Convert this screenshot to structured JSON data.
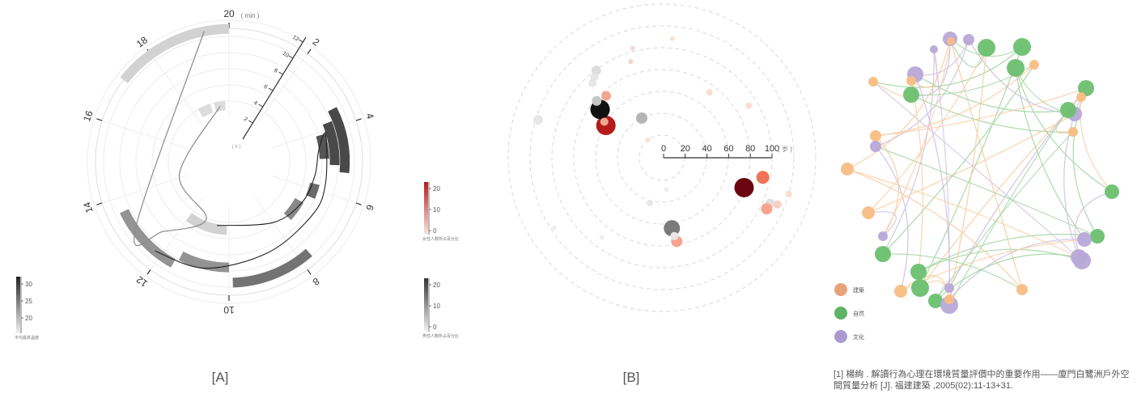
{
  "panel_labels": {
    "a": "[A]",
    "b": "[B]"
  },
  "citation": "[1] 楊絢 . 解讀行為心理在環境質量評價中的重要作用——廈門白鷺洲戶外空間質量分析 [J]. 福建建築 ,2005(02):11-13+31.",
  "chart_data": [
    {
      "type": "radial-bar",
      "panel": "A",
      "angular_axis": {
        "ticks": [
          "20",
          "2",
          "4",
          "6",
          "8",
          "10",
          "12",
          "14",
          "16",
          "18"
        ],
        "unit": "( min )"
      },
      "radial_scale_ticks": [
        "2",
        "4",
        "6",
        "8",
        "10",
        "12"
      ],
      "radial_scale_unit": "( h )",
      "colorbar": {
        "ticks": [
          "30",
          "25",
          "20"
        ],
        "label": "平均最高溫度"
      },
      "bars": [
        {
          "t0": 17.1,
          "t1": 20.0,
          "ring": 5.2,
          "temp": 18
        },
        {
          "t0": 11.6,
          "t1": 13.6,
          "ring": 4.2,
          "temp": 24
        },
        {
          "t0": 10.0,
          "t1": 11.5,
          "ring": 3.6,
          "temp": 24
        },
        {
          "t0": 7.7,
          "t1": 9.9,
          "ring": 4.5,
          "temp": 27
        },
        {
          "t0": 3.5,
          "t1": 5.3,
          "ring": 4.2,
          "temp": 31
        },
        {
          "t0": 3.8,
          "t1": 5.1,
          "ring": 3.6,
          "temp": 31
        },
        {
          "t0": 4.1,
          "t1": 4.9,
          "ring": 3.0,
          "temp": 30
        },
        {
          "t0": 5.8,
          "t1": 6.3,
          "ring": 2.6,
          "temp": 28
        },
        {
          "t0": 6.6,
          "t1": 7.4,
          "ring": 2.1,
          "temp": 25
        },
        {
          "t0": 10.1,
          "t1": 12.0,
          "ring": 1.4,
          "temp": 18
        },
        {
          "t0": 18.3,
          "t1": 19.0,
          "ring": 0.7,
          "temp": 17
        },
        {
          "t0": 19.2,
          "t1": 19.8,
          "ring": 0.7,
          "temp": 17
        }
      ],
      "curve_grey": [
        [
          19.4,
          5.2
        ],
        [
          13.0,
          4.2
        ],
        [
          12.4,
          3.0
        ],
        [
          11.2,
          1.0
        ],
        [
          14.2,
          0.4
        ],
        [
          19.5,
          0.7
        ]
      ],
      "curve_black": [
        [
          12.2,
          4.2
        ],
        [
          10.7,
          3.8
        ],
        [
          8.7,
          3.2
        ],
        [
          6.8,
          3.2
        ],
        [
          5.7,
          3.2
        ],
        [
          4.1,
          3.3
        ],
        [
          4.6,
          2.7
        ],
        [
          5.5,
          2.5
        ],
        [
          6.6,
          2.3
        ],
        [
          8.0,
          1.8
        ],
        [
          10.6,
          1.2
        ]
      ]
    },
    {
      "type": "bubble-polar",
      "panel": "B",
      "axis": {
        "ticks": [
          "0",
          "20",
          "40",
          "60",
          "80",
          "100"
        ],
        "unit": "( 岁 )"
      },
      "colorbar_top": {
        "ticks": [
          "20",
          "10",
          "0"
        ],
        "label": "女性人數所占百分比"
      },
      "colorbar_bottom": {
        "ticks": [
          "20",
          "10",
          "0"
        ],
        "label": "男性人數所占百分比"
      },
      "points": [
        {
          "ang": 300,
          "dist": 80,
          "r": 12,
          "color": "#b51b1b"
        },
        {
          "ang": 308,
          "dist": 97,
          "r": 12,
          "color": "#111111"
        },
        {
          "ang": 302,
          "dist": 84,
          "r": 5,
          "color": "#f2a690"
        },
        {
          "ang": 333,
          "dist": 55,
          "r": 7,
          "color": "#b5b5b5"
        },
        {
          "ang": 311,
          "dist": 107,
          "r": 6,
          "color": "#c6c6c6"
        },
        {
          "ang": 323,
          "dist": 135,
          "r": 6,
          "color": "#dddddd"
        },
        {
          "ang": 317,
          "dist": 126,
          "r": 5,
          "color": "#e6e6e6"
        },
        {
          "ang": 320,
          "dist": 130,
          "r": 5,
          "color": "#e6e6e6"
        },
        {
          "ang": 318,
          "dist": 103,
          "r": 6,
          "color": "#f2a690"
        },
        {
          "ang": 287,
          "dist": 160,
          "r": 6,
          "color": "#e6e6e6"
        },
        {
          "ang": 345,
          "dist": 140,
          "r": 3,
          "color": "#f3dada"
        },
        {
          "ang": 342,
          "dist": 125,
          "r": 3,
          "color": "#fad5c8"
        },
        {
          "ang": 322,
          "dist": 28,
          "r": 3,
          "color": "#fbe0d6"
        },
        {
          "ang": 5,
          "dist": 148,
          "r": 3,
          "color": "#fbe0d6"
        },
        {
          "ang": 36,
          "dist": 100,
          "r": 4,
          "color": "#fbdcd0"
        },
        {
          "ang": 59,
          "dist": 125,
          "r": 4,
          "color": "#fbdcd0"
        },
        {
          "ang": 110,
          "dist": 108,
          "r": 12,
          "color": "#6b0510"
        },
        {
          "ang": 101,
          "dist": 127,
          "r": 8,
          "color": "#ef7356"
        },
        {
          "ang": 113,
          "dist": 145,
          "r": 6,
          "color": "#e0e0e0"
        },
        {
          "ang": 116,
          "dist": 144,
          "r": 7,
          "color": "#f7a58f"
        },
        {
          "ang": 112,
          "dist": 154,
          "r": 5,
          "color": "#fbd0c3"
        },
        {
          "ang": 106,
          "dist": 163,
          "r": 4,
          "color": "#fbdcd0"
        },
        {
          "ang": 172,
          "dist": 88,
          "r": 10,
          "color": "#7a7a7a"
        },
        {
          "ang": 170,
          "dist": 105,
          "r": 7,
          "color": "#f7a58f"
        },
        {
          "ang": 171,
          "dist": 98,
          "r": 5,
          "color": "#e6e6e6"
        },
        {
          "ang": 195,
          "dist": 58,
          "r": 4,
          "color": "#e6e6e6"
        },
        {
          "ang": 172,
          "dist": 40,
          "r": 3,
          "color": "#eeeeee"
        },
        {
          "ang": 217,
          "dist": 123,
          "r": 3,
          "color": "#eeeeee"
        },
        {
          "ang": 237,
          "dist": 159,
          "r": 3,
          "color": "#eeeeee"
        }
      ]
    },
    {
      "type": "network",
      "panel": "C",
      "legend": [
        {
          "label": "建築",
          "color": "#f8bd83"
        },
        {
          "label": "自然",
          "color": "#6cc070"
        },
        {
          "label": "文化",
          "color": "#b8a8d8"
        }
      ],
      "nodes": [
        [
          174,
          48,
          9,
          2
        ],
        [
          197,
          49,
          7,
          2
        ],
        [
          154,
          61,
          5,
          2
        ],
        [
          175,
          51,
          5,
          0
        ],
        [
          219,
          59,
          11,
          1
        ],
        [
          263,
          58,
          11,
          1
        ],
        [
          278,
          80,
          6,
          0
        ],
        [
          255,
          84,
          11,
          1
        ],
        [
          131,
          92,
          10,
          2
        ],
        [
          126,
          100,
          6,
          0
        ],
        [
          79,
          101,
          6,
          0
        ],
        [
          126,
          117,
          10,
          1
        ],
        [
          342,
          109,
          10,
          1
        ],
        [
          336,
          120,
          6,
          0
        ],
        [
          328,
          141,
          9,
          2
        ],
        [
          320,
          136,
          10,
          1
        ],
        [
          326,
          163,
          6,
          0
        ],
        [
          82,
          168,
          7,
          0
        ],
        [
          82,
          181,
          7,
          2
        ],
        [
          47,
          209,
          8,
          0
        ],
        [
          374,
          237,
          9,
          1
        ],
        [
          73,
          263,
          8,
          0
        ],
        [
          91,
          292,
          6,
          2
        ],
        [
          356,
          292,
          9,
          1
        ],
        [
          340,
          296,
          9,
          2
        ],
        [
          91,
          314,
          10,
          1
        ],
        [
          333,
          318,
          10,
          2
        ],
        [
          337,
          322,
          11,
          2
        ],
        [
          135,
          336,
          10,
          1
        ],
        [
          113,
          360,
          8,
          0
        ],
        [
          137,
          356,
          11,
          1
        ],
        [
          173,
          356,
          6,
          2
        ],
        [
          263,
          358,
          7,
          0
        ],
        [
          156,
          372,
          9,
          1
        ],
        [
          173,
          377,
          11,
          2
        ],
        [
          173,
          370,
          6,
          0
        ]
      ]
    }
  ]
}
